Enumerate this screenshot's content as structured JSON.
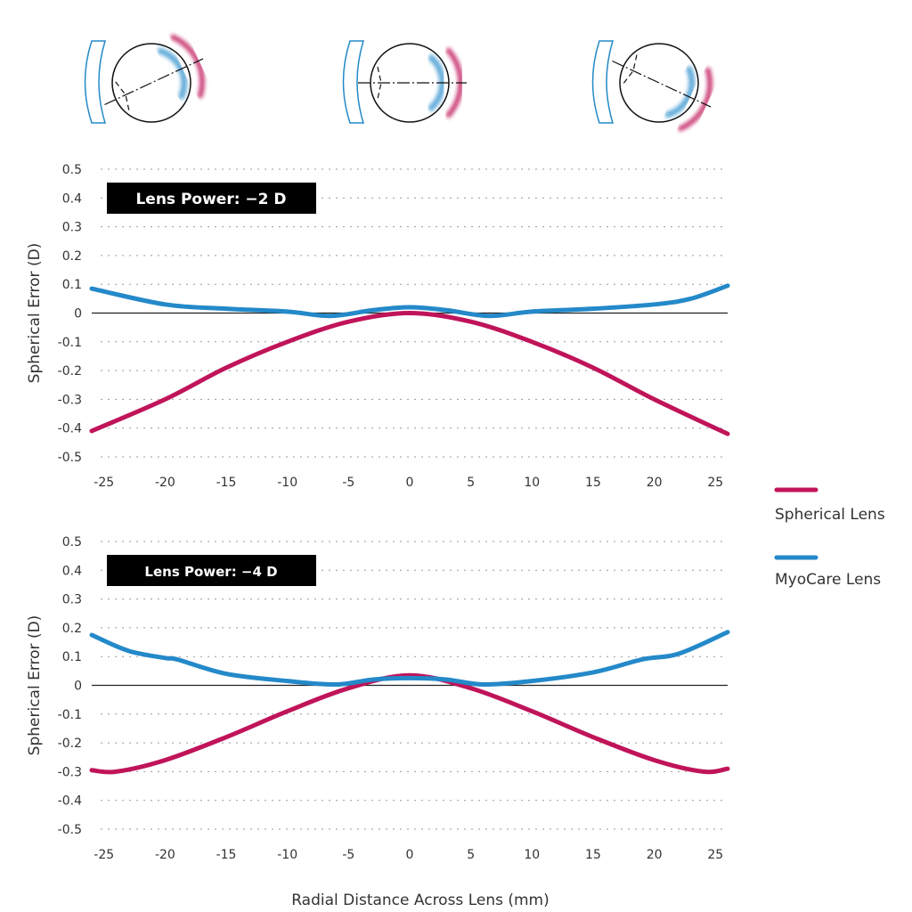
{
  "colors": {
    "spherical": "#c0145a",
    "myocare": "#2489c9",
    "badge_bg": "#000000"
  },
  "icons": [
    "eye-diagram-left-gaze",
    "eye-diagram-center-gaze",
    "eye-diagram-right-gaze"
  ],
  "legend": {
    "position": "right",
    "items": [
      {
        "label": "Spherical Lens"
      },
      {
        "label": "MyoCare Lens"
      }
    ]
  },
  "xlabel": "Radial Distance Across Lens (mm)",
  "chart_data": [
    {
      "type": "line",
      "badge": "Lens Power: −2 D",
      "ylabel": "Spherical Error (D)",
      "xlim": [
        -26,
        26
      ],
      "ylim": [
        -0.5,
        0.5
      ],
      "xticks": [
        "-25",
        "-20",
        "-15",
        "-10",
        "-5",
        "0",
        "5",
        "10",
        "15",
        "20",
        "25"
      ],
      "yticks": [
        "0.5",
        "0.4",
        "0.3",
        "0.2",
        "0.1",
        "0",
        "-0.1",
        "-0.2",
        "-0.3",
        "-0.4",
        "-0.5"
      ],
      "grid": "horizontal dotted",
      "series": [
        {
          "name": "Spherical Lens",
          "x": [
            -26,
            -20,
            -15,
            -10,
            -5,
            0,
            5,
            10,
            15,
            20,
            26
          ],
          "y": [
            -0.41,
            -0.3,
            -0.19,
            -0.1,
            -0.03,
            0,
            -0.03,
            -0.1,
            -0.19,
            -0.3,
            -0.42
          ]
        },
        {
          "name": "MyoCare Lens",
          "x": [
            -26,
            -20,
            -15,
            -10,
            -6.5,
            -3,
            0,
            3,
            6.5,
            10,
            15,
            20,
            23,
            26
          ],
          "y": [
            0.085,
            0.03,
            0.015,
            0.005,
            -0.01,
            0.01,
            0.02,
            0.01,
            -0.01,
            0.005,
            0.015,
            0.03,
            0.05,
            0.095
          ]
        }
      ]
    },
    {
      "type": "line",
      "badge": "Lens Power: −4 D",
      "ylabel": "Spherical Error (D)",
      "xlim": [
        -26,
        26
      ],
      "ylim": [
        -0.5,
        0.5
      ],
      "xticks": [
        "-25",
        "-20",
        "-15",
        "-10",
        "-5",
        "0",
        "5",
        "10",
        "15",
        "20",
        "25"
      ],
      "yticks": [
        "0.5",
        "0.4",
        "0.3",
        "0.2",
        "0.1",
        "0",
        "-0.1",
        "-0.2",
        "-0.3",
        "-0.4",
        "-0.5"
      ],
      "grid": "horizontal dotted",
      "series": [
        {
          "name": "Spherical Lens",
          "x": [
            -26,
            -24,
            -20,
            -15,
            -10,
            -5,
            0,
            5,
            10,
            15,
            20,
            24,
            26
          ],
          "y": [
            -0.295,
            -0.3,
            -0.26,
            -0.18,
            -0.09,
            -0.01,
            0.035,
            -0.01,
            -0.09,
            -0.18,
            -0.26,
            -0.3,
            -0.29
          ]
        },
        {
          "name": "MyoCare Lens",
          "x": [
            -26,
            -23,
            -20,
            -19,
            -15,
            -10,
            -6,
            -3,
            0,
            3,
            6,
            10,
            15,
            19,
            22,
            26
          ],
          "y": [
            0.175,
            0.12,
            0.095,
            0.09,
            0.04,
            0.015,
            0.003,
            0.02,
            0.025,
            0.02,
            0.003,
            0.015,
            0.045,
            0.09,
            0.11,
            0.185
          ]
        }
      ]
    }
  ]
}
